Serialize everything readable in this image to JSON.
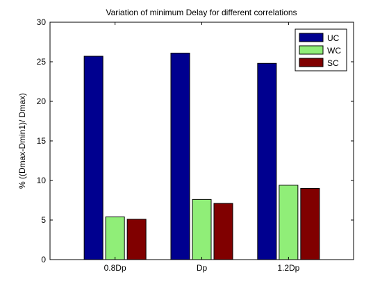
{
  "chart_data": {
    "type": "bar",
    "title": "Variation of minimum Delay for different correlations",
    "xlabel": "",
    "ylabel": "% ((Dmax-Dmin1)/ Dmax)",
    "categories": [
      "0.8Dp",
      "Dp",
      "1.2Dp"
    ],
    "series": [
      {
        "name": "UC",
        "color": "#00008f",
        "values": [
          25.7,
          26.1,
          24.8
        ]
      },
      {
        "name": "WC",
        "color": "#90ee78",
        "values": [
          5.4,
          7.6,
          9.4
        ]
      },
      {
        "name": "SC",
        "color": "#800000",
        "values": [
          5.1,
          7.1,
          9.0
        ]
      }
    ],
    "ylim": [
      0,
      30
    ],
    "yticks": [
      0,
      5,
      10,
      15,
      20,
      25,
      30
    ],
    "grid": false,
    "legend_position": "top-right"
  }
}
